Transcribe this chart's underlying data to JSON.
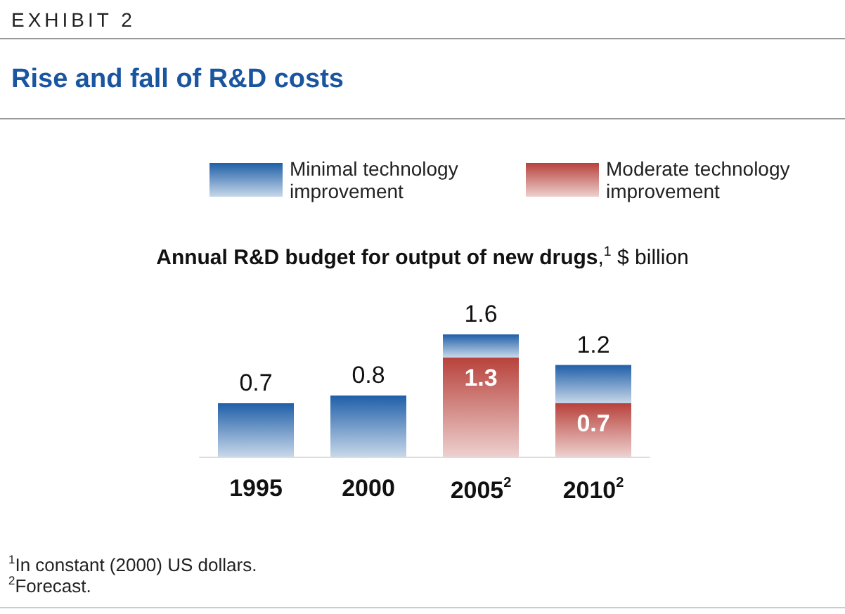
{
  "chart_data": {
    "type": "bar",
    "title": "Rise and fall of R&D costs",
    "subtitle": "Annual R&D budget for output of new drugs,$^{1}$ $ billion",
    "annotations": [
      "EXHIBIT 2",
      "$^{1}$In constant (2000) US dollars.",
      "$^{2}$Forecast."
    ],
    "categories": [
      "1995",
      "2000",
      "2005$^{2}$",
      "2010$^{2}$"
    ],
    "stacked": true,
    "series": [
      {
        "name": "Moderate technology improvement",
        "color": "#b8413b",
        "values": [
          null,
          null,
          1.3,
          0.7
        ],
        "value_labels": [
          null,
          null,
          "1.3",
          "0.7"
        ]
      },
      {
        "name": "Minimal technology improvement",
        "color": "#1f5fa8",
        "values": [
          0.7,
          0.8,
          0.3,
          0.5
        ]
      }
    ],
    "totals": [
      "0.7",
      "0.8",
      "1.6",
      "1.2"
    ],
    "legend": "top right",
    "grid": false
  }
}
